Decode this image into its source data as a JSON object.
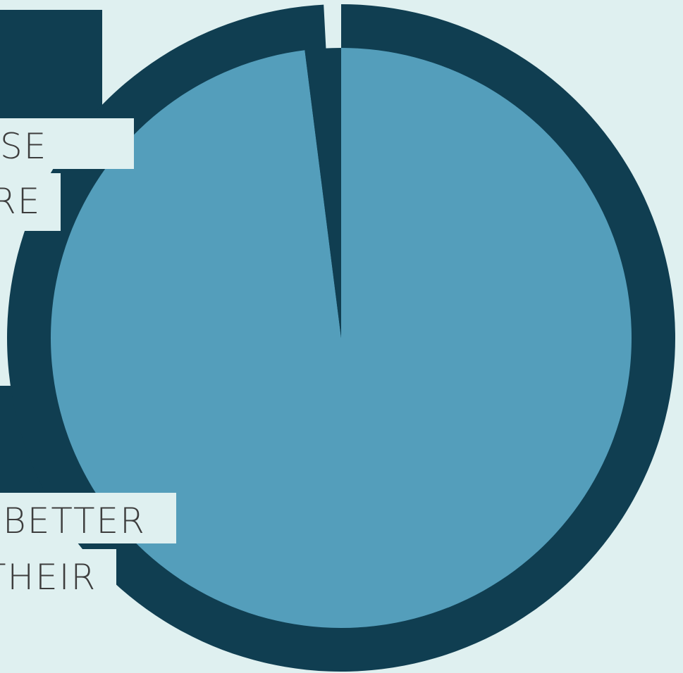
{
  "colors": {
    "background": "#dff0f0",
    "dark": "#103e51",
    "light": "#549ebb",
    "text": "#3d3d3d"
  },
  "chart_data": {
    "type": "pie",
    "title": "",
    "slices": [
      {
        "value": 98,
        "color": "#549ebb"
      },
      {
        "value": 2,
        "color": "#103e51"
      }
    ],
    "style": "donut-ring-with-inner-pie"
  },
  "labels": {
    "top": {
      "line1": "SE",
      "line2": "RE"
    },
    "bottom": {
      "line1": "BETTER",
      "line2": "THEIR"
    }
  }
}
